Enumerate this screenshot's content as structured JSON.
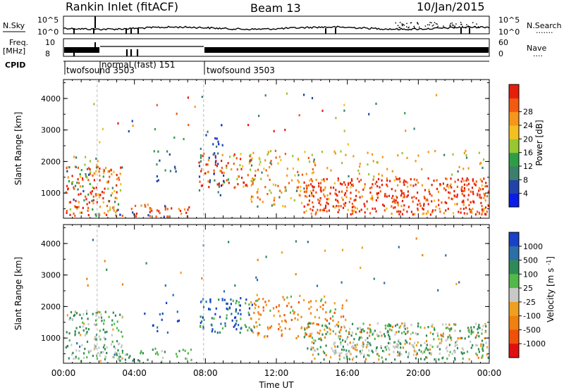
{
  "header": {
    "station": "Rankin Inlet (fitACF)",
    "beam": "Beam 13",
    "date": "10/Jan/2015"
  },
  "status_panels": {
    "nsky_label": "N.Sky",
    "nsky_ticks": [
      "10^5",
      "10^0"
    ],
    "nsearch_label": "N.Search",
    "nsearch_ticks": [
      "10^5",
      "10^0"
    ],
    "nsearch_legend": ".......",
    "freq_label": "Freq.",
    "freq_unit": "[MHz]",
    "freq_ticks": [
      "10",
      "8"
    ],
    "nave_label": "Nave",
    "nave_ticks": [
      "60",
      "0"
    ],
    "nave_legend": "....",
    "cpid_label": "CPID",
    "cpid_segments": [
      {
        "label": "twofsound 3503",
        "start_h": 0.0,
        "end_h": 1.9
      },
      {
        "label": "normal (fast) 151",
        "start_h": 1.9,
        "end_h": 7.9
      },
      {
        "label": "twofsound 3503",
        "start_h": 7.9,
        "end_h": 24.0
      }
    ]
  },
  "chart_data": [
    {
      "type": "heatmap",
      "name": "power",
      "ylabel": "Slant Range [km]",
      "yticks": [
        1000,
        2000,
        3000,
        4000
      ],
      "ylim": [
        200,
        4600
      ],
      "xlim": [
        0,
        24
      ],
      "colorbar_label": "Power [dB]",
      "colorbar_ticks": [
        "4",
        "8",
        "12",
        "16",
        "20",
        "24",
        "28"
      ],
      "colorbar_colors": [
        "#0a1de8",
        "#2244a8",
        "#3c7f6c",
        "#2e9e46",
        "#96c832",
        "#f4c020",
        "#f6961a",
        "#f25a12",
        "#e81e0c"
      ]
    },
    {
      "type": "heatmap",
      "name": "velocity",
      "ylabel": "Slant Range [km]",
      "yticks": [
        1000,
        2000,
        3000,
        4000
      ],
      "ylim": [
        200,
        4600
      ],
      "xlim": [
        0,
        24
      ],
      "xticks": [
        "00:00",
        "04:00",
        "08:00",
        "12:00",
        "16:00",
        "20:00",
        "00:00"
      ],
      "xlabel": "Time UT",
      "colorbar_label": "Velocity [m s^-1]",
      "colorbar_ticks": [
        "1000",
        "500",
        "100",
        "25",
        "-25",
        "-100",
        "-500",
        "-1000"
      ],
      "colorbar_colors": [
        "#1840c8",
        "#2c6ea8",
        "#2f8a58",
        "#52b84a",
        "#c8c8c8",
        "#f0a020",
        "#f08010",
        "#f05008",
        "#e01010"
      ]
    }
  ]
}
